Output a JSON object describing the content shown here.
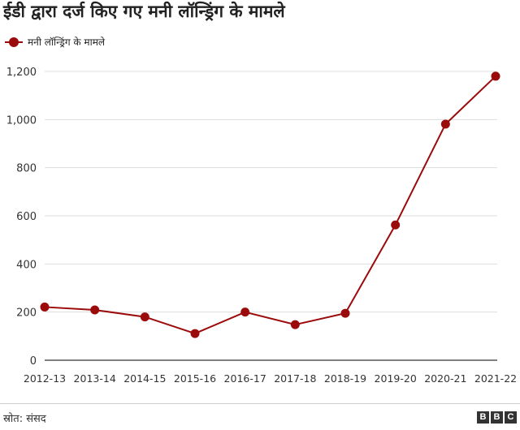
{
  "chart_data": {
    "type": "line",
    "title": "ईडी द्वारा दर्ज किए गए मनी लॉन्ड्रिंग के मामले",
    "xlabel": "",
    "ylabel": "",
    "categories": [
      "2012-13",
      "2013-14",
      "2014-15",
      "2015-16",
      "2016-17",
      "2017-18",
      "2018-19",
      "2019-20",
      "2020-21",
      "2021-22"
    ],
    "series": [
      {
        "name": "मनी लॉन्ड्रिंग के मामले",
        "values": [
          221,
          209,
          180,
          111,
          200,
          148,
          195,
          562,
          981,
          1180
        ]
      }
    ],
    "ylim": [
      0,
      1200
    ],
    "yticks": [
      0,
      200,
      400,
      600,
      800,
      1000,
      1200
    ],
    "ytick_labels": [
      "0",
      "200",
      "400",
      "600",
      "800",
      "1,000",
      "1,200"
    ],
    "grid": true,
    "legend_position": "top-left",
    "colors": {
      "series": "#9b0b0b",
      "grid": "#dddddd",
      "axis": "#333333"
    }
  },
  "source_text": "स्रोत: संसद",
  "logo_text": [
    "B",
    "B",
    "C"
  ]
}
